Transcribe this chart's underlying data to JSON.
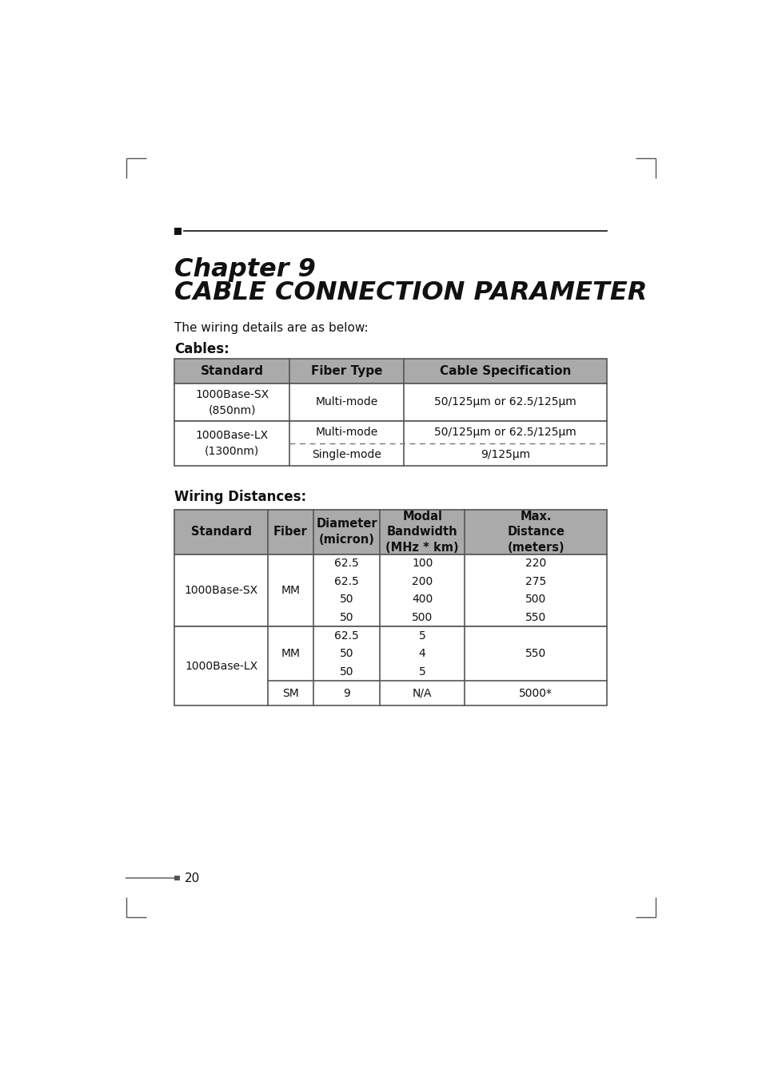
{
  "page_title_line1": "Chapter 9",
  "page_title_line2": "CABLE CONNECTION PARAMETER",
  "intro_text": "The wiring details are as below:",
  "cables_heading": "Cables:",
  "wiring_heading": "Wiring Distances:",
  "page_number": "20",
  "bg_color": "#ffffff",
  "header_bg": "#aaaaaa",
  "table1_headers": [
    "Standard",
    "Fiber Type",
    "Cable Specification"
  ],
  "table2_headers": [
    "Standard",
    "Fiber",
    "Diameter\n(micron)",
    "Modal\nBandwidth\n(MHz * km)",
    "Max.\nDistance\n(meters)"
  ]
}
